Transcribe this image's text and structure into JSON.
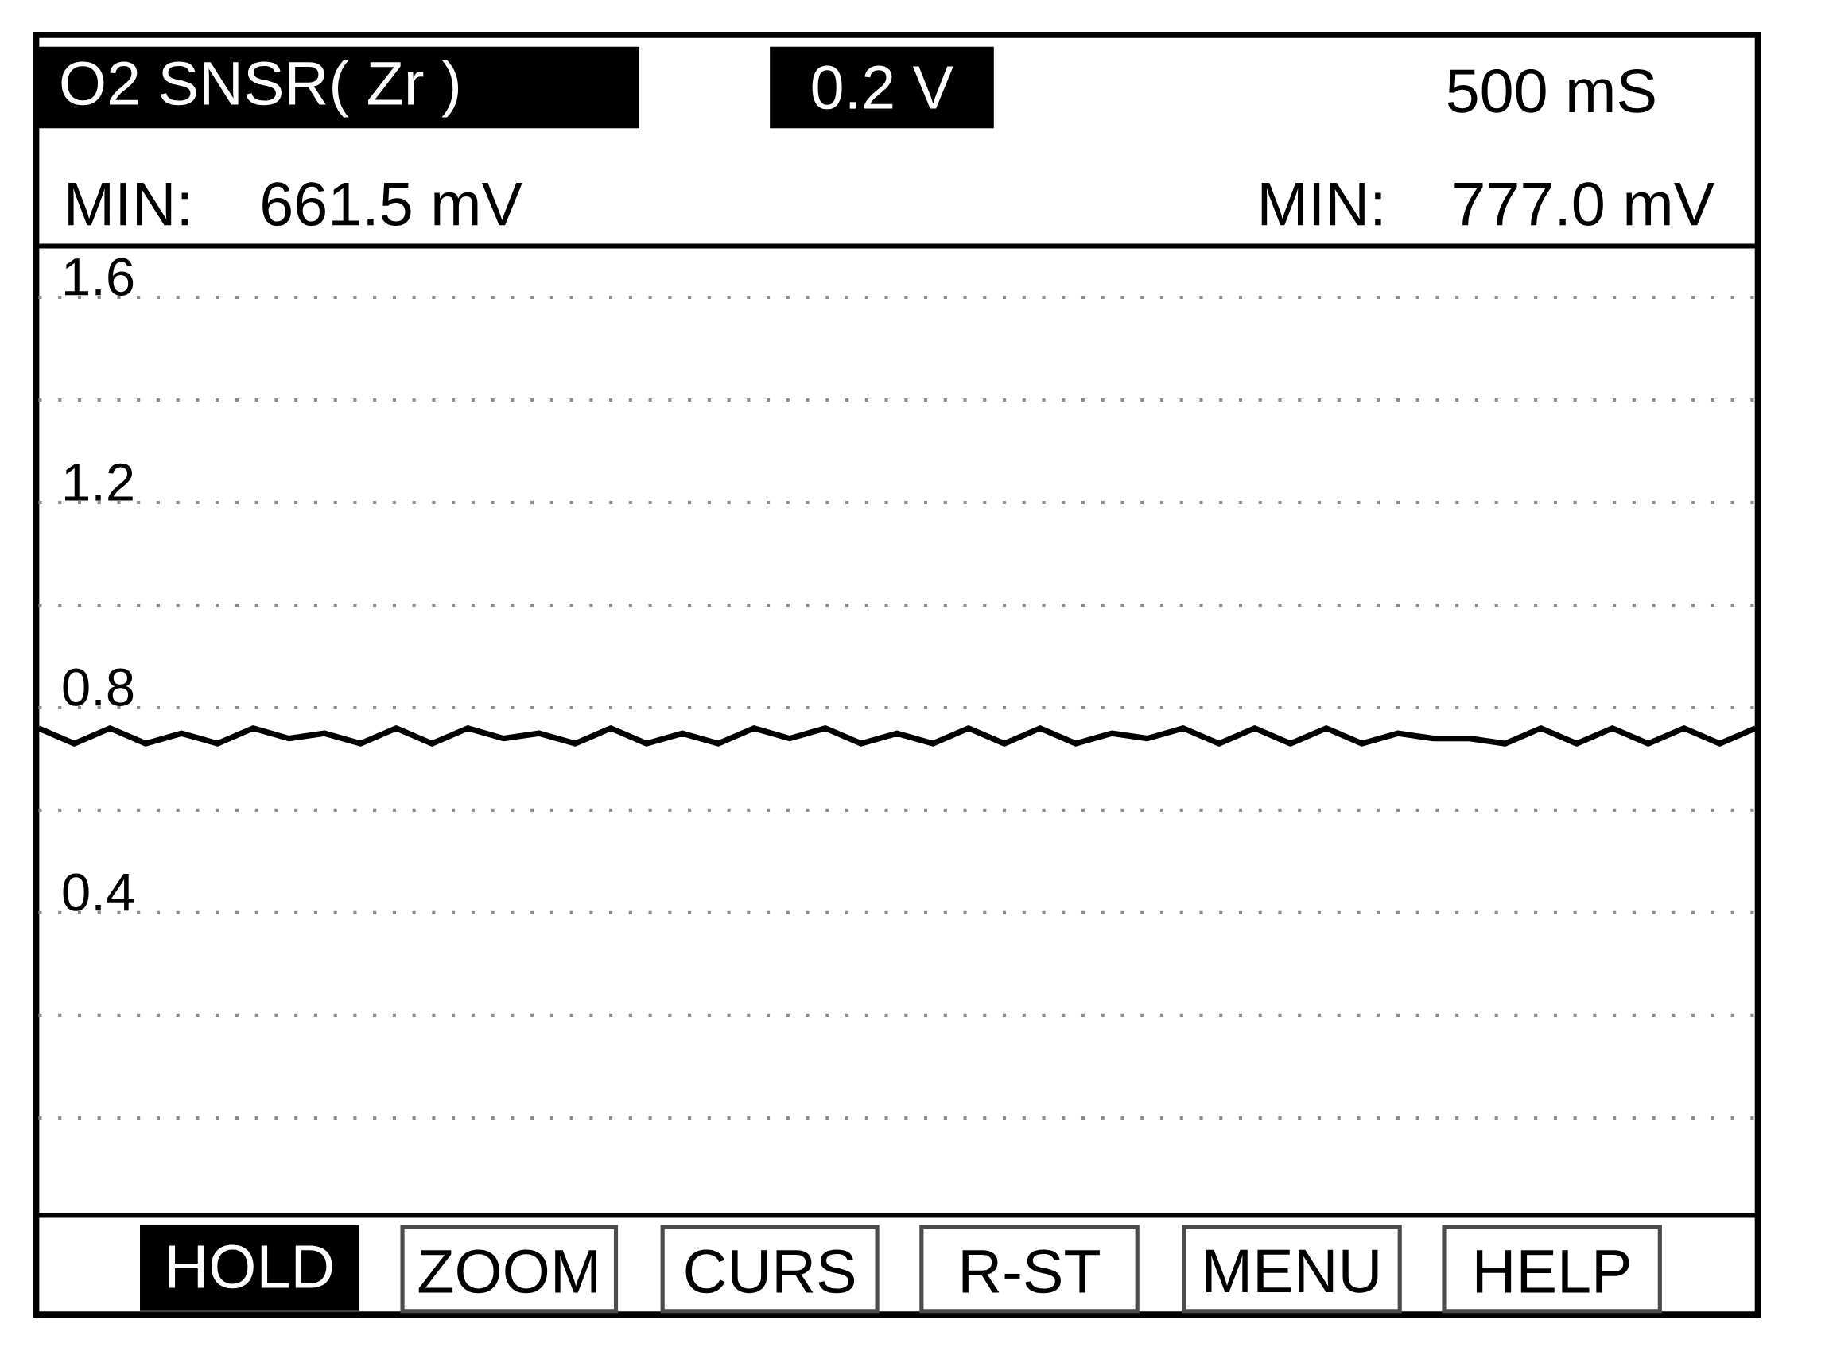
{
  "chart_data": {
    "type": "line",
    "title": "O2 SNSR( Zr )",
    "annotations": [
      "0.2 V",
      "500 mS",
      "MIN:",
      "661.5 mV",
      "MIN:",
      "777.0 mV",
      "HOLD",
      "ZOOM",
      "CURS",
      "R-ST",
      "MENU",
      "HELP"
    ],
    "categories": [
      null,
      null,
      null,
      null,
      null,
      null,
      null,
      null,
      null,
      null,
      null,
      null,
      null,
      null,
      null,
      null,
      null,
      null,
      null,
      null,
      null,
      null,
      null,
      null,
      null,
      null,
      null,
      null,
      null,
      null,
      null,
      null,
      null,
      null,
      null,
      null,
      null,
      null,
      null,
      null,
      null,
      null,
      null,
      null,
      null,
      null,
      null,
      null,
      null
    ],
    "values": [
      0.76,
      0.73,
      0.76,
      0.73,
      0.75,
      0.73,
      0.76,
      0.74,
      0.75,
      0.73,
      0.76,
      0.73,
      0.76,
      0.74,
      0.75,
      0.73,
      0.76,
      0.73,
      0.75,
      0.73,
      0.76,
      0.74,
      0.76,
      0.73,
      0.75,
      0.73,
      0.76,
      0.73,
      0.76,
      0.73,
      0.75,
      0.74,
      0.76,
      0.73,
      0.76,
      0.73,
      0.76,
      0.73,
      0.75,
      0.74,
      0.74,
      0.73,
      0.76,
      0.73,
      0.76,
      0.73,
      0.76,
      0.73,
      0.76
    ],
    "color": "#000000",
    "ylim": [
      -0.19,
      1.7
    ],
    "yticks": [
      {
        "value": 0,
        "label": null
      },
      {
        "value": 0.2,
        "label": null
      },
      0.4,
      {
        "value": 0.6,
        "label": null
      },
      0.8,
      {
        "value": 1.0,
        "label": null
      },
      1.2,
      {
        "value": 1.4,
        "label": null
      },
      1.6
    ],
    "grid": "y"
  }
}
